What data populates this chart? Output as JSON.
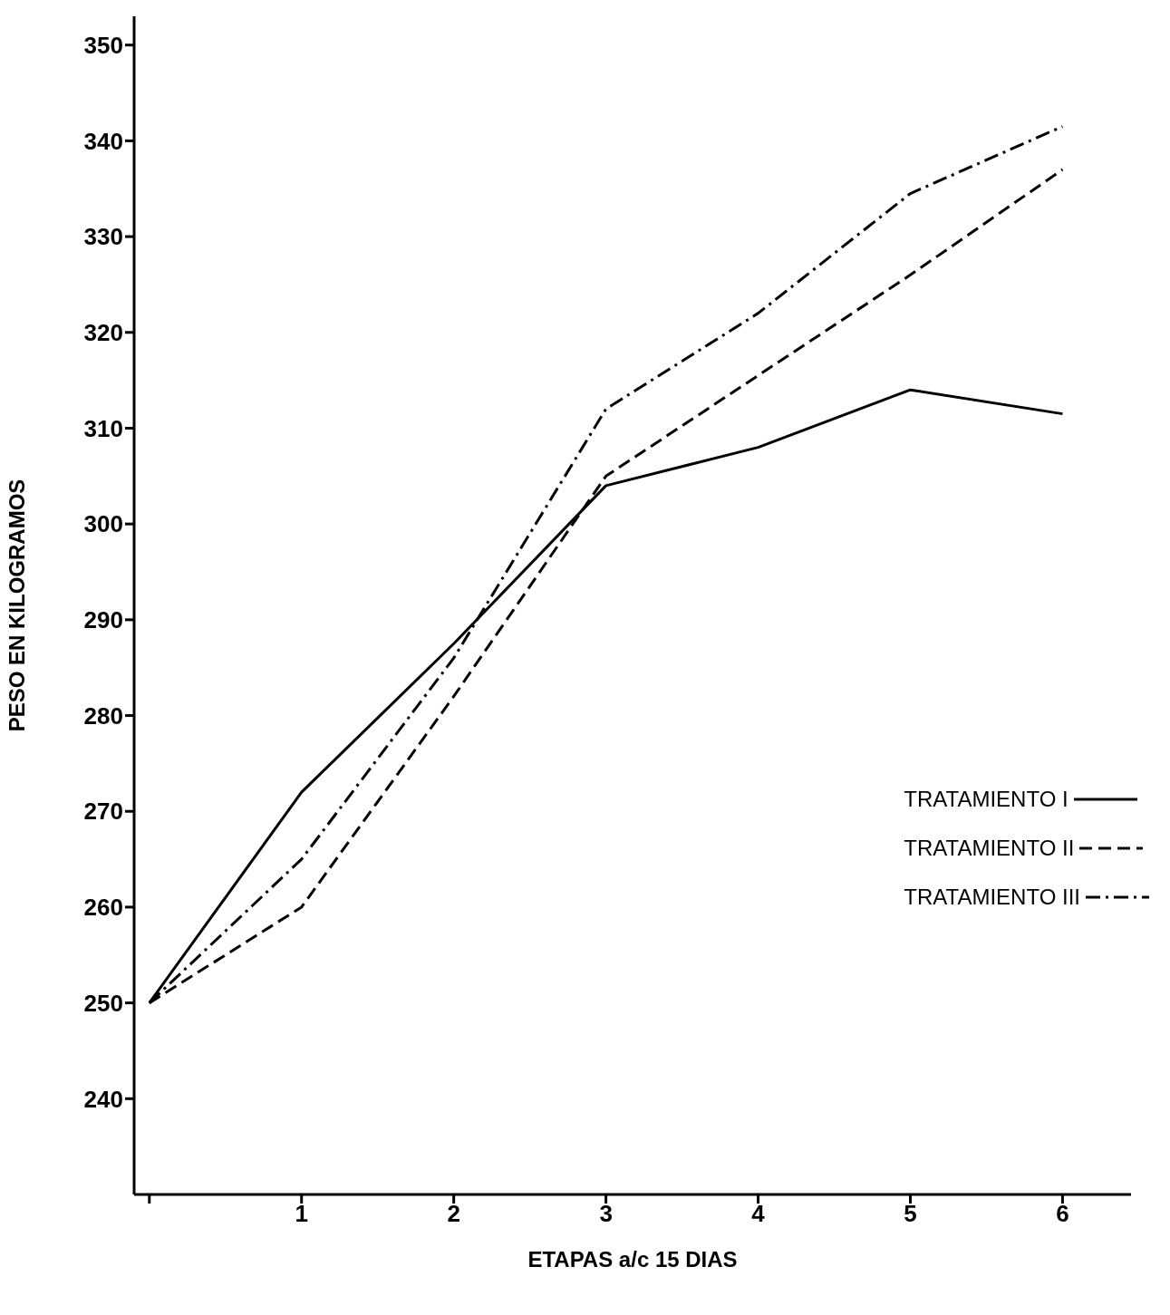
{
  "chart_data": {
    "type": "line",
    "xlabel": "ETAPAS a/c 15 DIAS",
    "ylabel": "PESO EN KILOGRAMOS",
    "x": [
      0,
      1,
      2,
      3,
      4,
      5,
      6
    ],
    "xlim": [
      -0.1,
      6.45
    ],
    "xticks": [
      {
        "value": 0,
        "label": null
      },
      1,
      2,
      3,
      4,
      5,
      6
    ],
    "ylim": [
      230,
      353
    ],
    "yticks": [
      240,
      250,
      260,
      270,
      280,
      290,
      300,
      310,
      320,
      330,
      340,
      350
    ],
    "grid": false,
    "legend": "right",
    "marker": "none",
    "series": [
      {
        "name": "TRATAMIENTO I",
        "color": "#000000",
        "line_style": "solid",
        "values": [
          250,
          272,
          287.5,
          304,
          308,
          314,
          311.5
        ]
      },
      {
        "name": "TRATAMIENTO II",
        "color": "#000000",
        "line_style": "dashed",
        "values": [
          250,
          260,
          282,
          305,
          315.5,
          326,
          337
        ]
      },
      {
        "name": "TRATAMIENTO III",
        "color": "#000000",
        "line_style": "dashdot",
        "values": [
          250,
          265,
          286,
          312,
          322,
          334.5,
          341.5
        ]
      }
    ]
  }
}
